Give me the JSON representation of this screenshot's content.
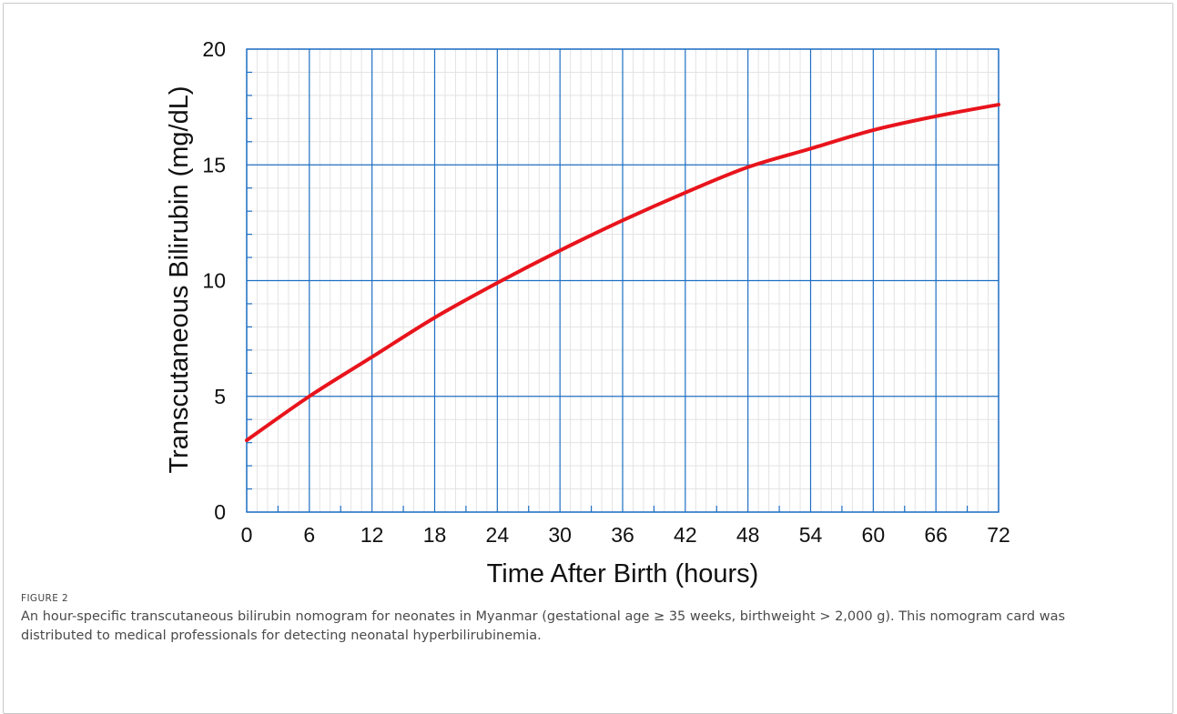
{
  "figure": {
    "label": "FIGURE 2",
    "caption": "An hour-specific transcutaneous bilirubin nomogram for neonates in Myanmar (gestational age ≥ 35 weeks, birthweight > 2,000 g). This nomogram card was distributed to medical professionals for detecting neonatal hyperbilirubinemia."
  },
  "chart_data": {
    "type": "line",
    "title": "",
    "xlabel": "Time After Birth (hours)",
    "ylabel": "Transcutaneous Bilirubin (mg/dL)",
    "xlim": [
      0,
      72
    ],
    "ylim": [
      0,
      20
    ],
    "xticks": [
      0,
      6,
      12,
      18,
      24,
      30,
      36,
      42,
      48,
      54,
      60,
      66,
      72
    ],
    "yticks": [
      0,
      5,
      10,
      15,
      20
    ],
    "grid": true,
    "colors": {
      "line": "#e8141c",
      "major_grid": "#1f6fc2",
      "minor_grid": "#e3e3e3",
      "axis": "#1f6fc2"
    },
    "series": [
      {
        "x": [
          0,
          6,
          12,
          18,
          24,
          30,
          36,
          42,
          48,
          54,
          60,
          66,
          72
        ],
        "values": [
          3.1,
          5.0,
          6.7,
          8.4,
          9.9,
          11.3,
          12.6,
          13.8,
          14.9,
          15.7,
          16.5,
          17.1,
          17.6
        ]
      }
    ]
  }
}
